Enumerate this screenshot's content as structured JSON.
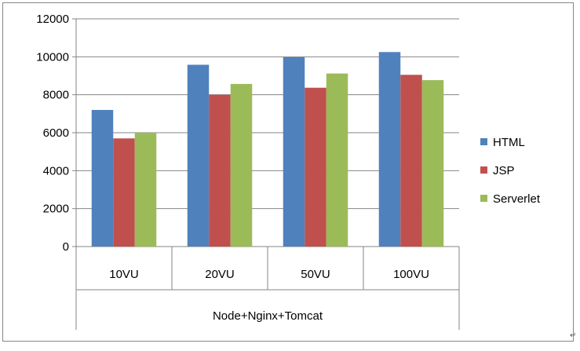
{
  "chart_data": {
    "type": "bar",
    "title": "",
    "xlabel": "",
    "ylabel": "",
    "group_label": "Node+Nginx+Tomcat",
    "categories": [
      "10VU",
      "20VU",
      "50VU",
      "100VU"
    ],
    "series": [
      {
        "name": "HTML",
        "color": "#4F81BD",
        "values": [
          7200,
          9580,
          9980,
          10250
        ]
      },
      {
        "name": "JSP",
        "color": "#C0504D",
        "values": [
          5700,
          8000,
          8370,
          9050
        ]
      },
      {
        "name": "Serverlet",
        "color": "#9BBB59",
        "values": [
          6000,
          8570,
          9120,
          8770
        ]
      }
    ],
    "ylim": [
      0,
      12000
    ],
    "yticks": [
      0,
      2000,
      4000,
      6000,
      8000,
      10000,
      12000
    ],
    "grid": true,
    "legend_position": "right"
  },
  "return_mark": "↵"
}
